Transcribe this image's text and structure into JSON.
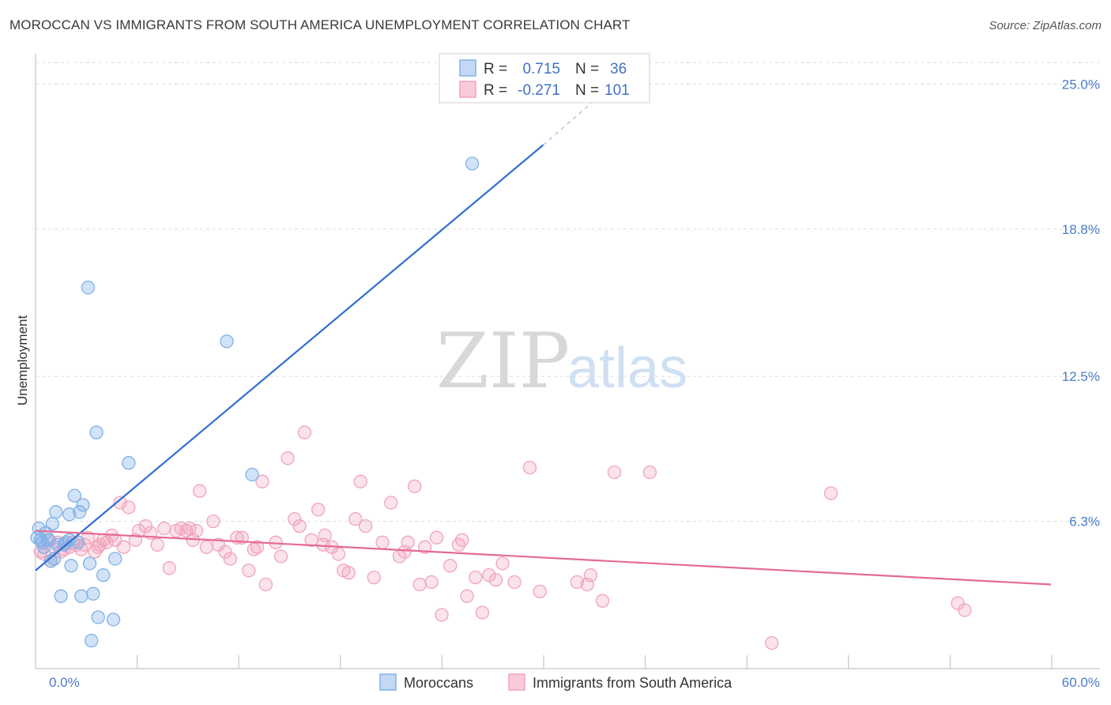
{
  "title": "MOROCCAN VS IMMIGRANTS FROM SOUTH AMERICA UNEMPLOYMENT CORRELATION CHART",
  "source": "Source: ZipAtlas.com",
  "watermark": {
    "part1": "ZIP",
    "part2": "atlas"
  },
  "chart_data": {
    "type": "scatter",
    "ylabel": "Unemployment",
    "xlabel": "",
    "xlim": [
      0,
      60
    ],
    "ylim": [
      0,
      26.3
    ],
    "y_ticks": [
      {
        "value": 6.3,
        "label": "6.3%"
      },
      {
        "value": 12.5,
        "label": "12.5%"
      },
      {
        "value": 18.8,
        "label": "18.8%"
      },
      {
        "value": 25.0,
        "label": "25.0%"
      }
    ],
    "x_tick_labels": {
      "min": "0.0%",
      "max": "60.0%"
    },
    "grid": true,
    "legend_position": "top-center",
    "series": [
      {
        "name": "Moroccans",
        "color": "#7fb0e8",
        "line_color": "#2f6fd0",
        "R": "0.715",
        "N": "36",
        "trend": {
          "x0": 0,
          "y0": 4.2,
          "x1": 30,
          "y1": 22.4,
          "dash_to_x": 33.5,
          "dash_to_y": 24.6
        },
        "points": [
          [
            0.2,
            6.0
          ],
          [
            0.3,
            5.5
          ],
          [
            0.4,
            5.4
          ],
          [
            0.5,
            5.2
          ],
          [
            0.6,
            5.8
          ],
          [
            0.8,
            5.5
          ],
          [
            0.9,
            4.6
          ],
          [
            1.0,
            6.2
          ],
          [
            1.1,
            4.7
          ],
          [
            1.2,
            6.7
          ],
          [
            1.3,
            5.3
          ],
          [
            1.5,
            3.1
          ],
          [
            1.7,
            5.3
          ],
          [
            2.0,
            5.5
          ],
          [
            2.0,
            6.6
          ],
          [
            2.1,
            4.4
          ],
          [
            2.3,
            7.4
          ],
          [
            2.5,
            5.4
          ],
          [
            2.6,
            6.7
          ],
          [
            2.8,
            7.0
          ],
          [
            3.1,
            16.3
          ],
          [
            3.2,
            4.5
          ],
          [
            3.3,
            1.2
          ],
          [
            3.4,
            3.2
          ],
          [
            3.6,
            10.1
          ],
          [
            3.7,
            2.2
          ],
          [
            4.0,
            4.0
          ],
          [
            4.6,
            2.1
          ],
          [
            4.7,
            4.7
          ],
          [
            5.5,
            8.8
          ],
          [
            11.3,
            14.0
          ],
          [
            12.8,
            8.3
          ],
          [
            25.8,
            21.6
          ],
          [
            0.1,
            5.6
          ],
          [
            1.8,
            5.4
          ],
          [
            2.7,
            3.1
          ]
        ]
      },
      {
        "name": "Immigrants from South America",
        "color": "#f1a3bb",
        "line_color": "#e46a94",
        "R": "-0.271",
        "N": "101",
        "trend": {
          "x0": 0,
          "y0": 5.9,
          "x1": 60,
          "y1": 3.6
        },
        "points": [
          [
            0.3,
            5.0
          ],
          [
            0.5,
            4.9
          ],
          [
            0.7,
            5.5
          ],
          [
            0.9,
            4.6
          ],
          [
            1.1,
            5.2
          ],
          [
            1.3,
            5.4
          ],
          [
            1.5,
            5.0
          ],
          [
            1.7,
            5.1
          ],
          [
            2.0,
            5.2
          ],
          [
            2.2,
            5.4
          ],
          [
            2.4,
            5.3
          ],
          [
            2.7,
            5.1
          ],
          [
            2.9,
            5.3
          ],
          [
            3.1,
            5.6
          ],
          [
            3.5,
            5.0
          ],
          [
            3.7,
            5.2
          ],
          [
            4.0,
            5.5
          ],
          [
            4.2,
            5.4
          ],
          [
            4.5,
            5.7
          ],
          [
            4.7,
            5.5
          ],
          [
            5.0,
            7.1
          ],
          [
            5.2,
            5.2
          ],
          [
            5.5,
            6.9
          ],
          [
            5.9,
            5.5
          ],
          [
            6.1,
            5.9
          ],
          [
            6.5,
            6.1
          ],
          [
            7.2,
            5.3
          ],
          [
            7.6,
            6.0
          ],
          [
            7.9,
            4.3
          ],
          [
            8.3,
            5.9
          ],
          [
            8.6,
            6.0
          ],
          [
            8.9,
            5.9
          ],
          [
            9.3,
            5.5
          ],
          [
            9.5,
            5.9
          ],
          [
            9.7,
            7.6
          ],
          [
            10.1,
            5.2
          ],
          [
            10.5,
            6.3
          ],
          [
            10.8,
            5.3
          ],
          [
            11.2,
            5.0
          ],
          [
            11.5,
            4.7
          ],
          [
            11.9,
            5.6
          ],
          [
            12.2,
            5.6
          ],
          [
            12.6,
            4.2
          ],
          [
            12.9,
            5.1
          ],
          [
            13.4,
            8.0
          ],
          [
            13.6,
            3.6
          ],
          [
            14.2,
            5.4
          ],
          [
            14.5,
            4.8
          ],
          [
            14.9,
            9.0
          ],
          [
            15.3,
            6.4
          ],
          [
            15.6,
            6.1
          ],
          [
            15.9,
            10.1
          ],
          [
            16.3,
            5.5
          ],
          [
            16.7,
            6.8
          ],
          [
            17.1,
            5.7
          ],
          [
            17.5,
            5.2
          ],
          [
            17.9,
            4.9
          ],
          [
            18.2,
            4.2
          ],
          [
            18.5,
            4.1
          ],
          [
            18.9,
            6.4
          ],
          [
            19.2,
            8.0
          ],
          [
            19.5,
            6.1
          ],
          [
            20.0,
            3.9
          ],
          [
            20.5,
            5.4
          ],
          [
            21.0,
            7.1
          ],
          [
            21.5,
            4.8
          ],
          [
            22.0,
            5.4
          ],
          [
            22.4,
            7.8
          ],
          [
            22.7,
            3.6
          ],
          [
            23.0,
            5.2
          ],
          [
            23.4,
            3.7
          ],
          [
            23.7,
            5.6
          ],
          [
            24.0,
            2.3
          ],
          [
            24.5,
            4.4
          ],
          [
            25.0,
            5.3
          ],
          [
            25.5,
            3.1
          ],
          [
            26.0,
            3.9
          ],
          [
            26.4,
            2.4
          ],
          [
            26.8,
            4.0
          ],
          [
            27.2,
            3.8
          ],
          [
            27.6,
            4.5
          ],
          [
            28.3,
            3.7
          ],
          [
            29.2,
            8.6
          ],
          [
            29.8,
            3.3
          ],
          [
            32.0,
            3.7
          ],
          [
            32.6,
            3.6
          ],
          [
            32.8,
            4.0
          ],
          [
            33.5,
            2.9
          ],
          [
            34.2,
            8.4
          ],
          [
            36.3,
            8.4
          ],
          [
            43.5,
            1.1
          ],
          [
            47.0,
            7.5
          ],
          [
            54.5,
            2.8
          ],
          [
            54.9,
            2.5
          ],
          [
            3.8,
            5.3
          ],
          [
            6.8,
            5.8
          ],
          [
            9.1,
            6.0
          ],
          [
            13.1,
            5.2
          ],
          [
            17.0,
            5.3
          ],
          [
            21.8,
            5.0
          ],
          [
            25.2,
            5.5
          ]
        ]
      }
    ]
  }
}
